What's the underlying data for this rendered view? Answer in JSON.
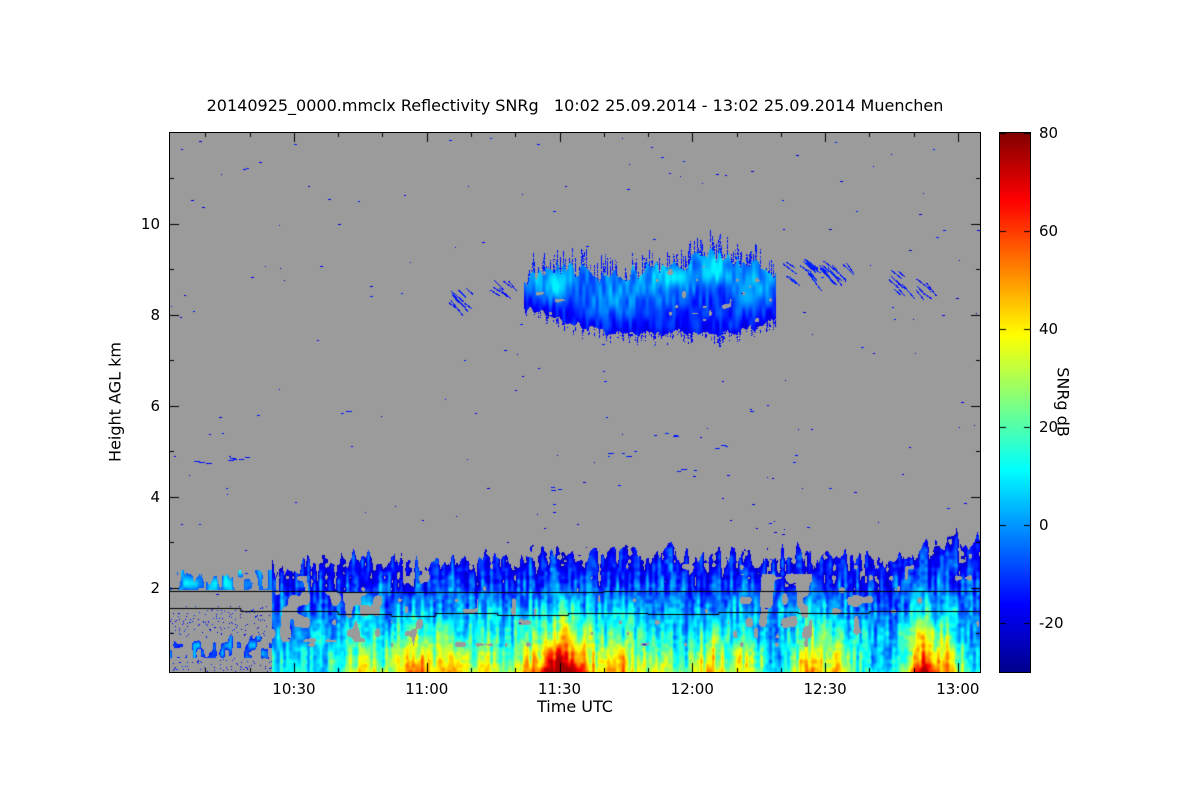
{
  "colors": {
    "page_background": "#ffffff",
    "text": "#000000",
    "axis": "#000000",
    "plot_background_gray": "#9b9b9b"
  },
  "chart_data": {
    "type": "heatmap",
    "title": "20140925_0000.mmclx Reflectivity SNRg   10:02 25.09.2014 - 13:02 25.09.2014 Muenchen",
    "xlabel": "Time UTC",
    "ylabel": "Height AGL km",
    "colorbar_label": "SNRg dB",
    "x_range_minutes": [
      602,
      785
    ],
    "y_range_km": [
      0.15,
      12.0
    ],
    "value_range_db": [
      -30,
      80
    ],
    "background_color": "#9b9b9b",
    "x_ticks": [
      {
        "minutes": 630,
        "label": "10:30"
      },
      {
        "minutes": 660,
        "label": "11:00"
      },
      {
        "minutes": 690,
        "label": "11:30"
      },
      {
        "minutes": 720,
        "label": "12:00"
      },
      {
        "minutes": 750,
        "label": "12:30"
      },
      {
        "minutes": 780,
        "label": "13:00"
      }
    ],
    "x_minor_ticks": [
      610,
      620,
      640,
      650,
      670,
      680,
      700,
      710,
      730,
      740,
      760,
      770
    ],
    "y_ticks": [
      {
        "km": 2,
        "label": "2"
      },
      {
        "km": 4,
        "label": "4"
      },
      {
        "km": 6,
        "label": "6"
      },
      {
        "km": 8,
        "label": "8"
      },
      {
        "km": 10,
        "label": "10"
      }
    ],
    "y_minor_ticks": [
      1,
      3,
      5,
      7,
      9,
      11
    ],
    "colorbar_ticks": [
      {
        "value": 80,
        "label": "80"
      },
      {
        "value": 60,
        "label": "60"
      },
      {
        "value": 40,
        "label": "40"
      },
      {
        "value": 20,
        "label": "20"
      },
      {
        "value": 0,
        "label": "0"
      },
      {
        "value": -20,
        "label": "-20"
      }
    ],
    "colormap": [
      [
        0.0,
        [
          0,
          0,
          140
        ]
      ],
      [
        0.125,
        [
          0,
          0,
          255
        ]
      ],
      [
        0.375,
        [
          0,
          255,
          255
        ]
      ],
      [
        0.625,
        [
          255,
          255,
          0
        ]
      ],
      [
        0.875,
        [
          255,
          0,
          0
        ]
      ],
      [
        1.0,
        [
          130,
          0,
          0
        ]
      ]
    ],
    "hole_p": 0.1,
    "hole_bands": [
      {
        "t0": 602,
        "t1": 650,
        "h0": 0.8,
        "h1": 1.9,
        "p": 0.42
      },
      {
        "t0": 728,
        "t1": 747,
        "h0": 0.9,
        "h1": 2.3,
        "p": 0.34
      },
      {
        "t0": 750,
        "t1": 766,
        "h0": 1.0,
        "h1": 2.0,
        "p": 0.25
      }
    ],
    "boundary_layer": {
      "t_start": 602,
      "t_end": 785,
      "base_km": 0.15,
      "top_profile": [
        [
          602,
          2.25
        ],
        [
          620,
          2.3
        ],
        [
          626,
          2.45
        ],
        [
          634,
          2.55
        ],
        [
          642,
          2.6
        ],
        [
          650,
          2.65
        ],
        [
          658,
          2.55
        ],
        [
          664,
          2.6
        ],
        [
          672,
          2.7
        ],
        [
          678,
          2.6
        ],
        [
          684,
          2.75
        ],
        [
          690,
          2.8
        ],
        [
          696,
          2.65
        ],
        [
          702,
          2.7
        ],
        [
          708,
          2.75
        ],
        [
          714,
          2.85
        ],
        [
          720,
          2.7
        ],
        [
          726,
          2.75
        ],
        [
          732,
          2.65
        ],
        [
          738,
          2.7
        ],
        [
          744,
          2.8
        ],
        [
          750,
          2.7
        ],
        [
          756,
          2.65
        ],
        [
          762,
          2.6
        ],
        [
          768,
          2.7
        ],
        [
          774,
          2.9
        ],
        [
          779,
          3.1
        ],
        [
          785,
          3.0
        ]
      ],
      "left_zone": {
        "t_end": 625,
        "band": [
          1.95,
          2.4
        ],
        "low_band": [
          0.45,
          0.95
        ],
        "dot_h_max": 1.6
      },
      "plumes": [
        {
          "t": 646,
          "width": 5,
          "strength": 30
        },
        {
          "t": 657,
          "width": 4,
          "strength": 50
        },
        {
          "t": 665,
          "width": 4,
          "strength": 35
        },
        {
          "t": 673,
          "width": 4,
          "strength": 30
        },
        {
          "t": 683,
          "width": 4,
          "strength": 35
        },
        {
          "t": 690,
          "width": 4,
          "strength": 68
        },
        {
          "t": 696,
          "width": 4,
          "strength": 40
        },
        {
          "t": 704,
          "width": 4,
          "strength": 38
        },
        {
          "t": 712,
          "width": 4,
          "strength": 30
        },
        {
          "t": 724,
          "width": 4,
          "strength": 35
        },
        {
          "t": 732,
          "width": 4,
          "strength": 30
        },
        {
          "t": 746,
          "width": 4,
          "strength": 35
        },
        {
          "t": 753,
          "width": 4,
          "strength": 30
        },
        {
          "t": 772,
          "width": 4,
          "strength": 62
        },
        {
          "t": 778,
          "width": 3,
          "strength": 40
        }
      ]
    },
    "cirrus": {
      "t_start": 682,
      "t_end": 739,
      "base_profile": [
        [
          682,
          8.2
        ],
        [
          688,
          8.0
        ],
        [
          694,
          7.8
        ],
        [
          700,
          7.65
        ],
        [
          706,
          7.55
        ],
        [
          712,
          7.6
        ],
        [
          718,
          7.65
        ],
        [
          724,
          7.55
        ],
        [
          730,
          7.65
        ],
        [
          735,
          7.75
        ],
        [
          739,
          8.0
        ]
      ],
      "top_profile": [
        [
          682,
          8.7
        ],
        [
          686,
          8.95
        ],
        [
          690,
          9.05
        ],
        [
          696,
          8.9
        ],
        [
          702,
          8.85
        ],
        [
          708,
          8.95
        ],
        [
          714,
          9.05
        ],
        [
          719,
          9.15
        ],
        [
          724,
          9.35
        ],
        [
          728,
          9.25
        ],
        [
          732,
          9.15
        ],
        [
          736,
          9.0
        ],
        [
          739,
          8.85
        ]
      ],
      "value_base": -16,
      "value_top": -2,
      "noise_amp": 7,
      "cores": [
        {
          "t": 689,
          "h": 8.6,
          "rt": 4,
          "rh": 0.3,
          "dv": 15
        },
        {
          "t": 702,
          "h": 8.3,
          "rt": 5,
          "rh": 0.3,
          "dv": 8
        },
        {
          "t": 715,
          "h": 8.8,
          "rt": 5,
          "rh": 0.35,
          "dv": 12
        },
        {
          "t": 725,
          "h": 9.0,
          "rt": 3,
          "rh": 0.3,
          "dv": 15
        },
        {
          "t": 733,
          "h": 8.5,
          "rt": 4,
          "rh": 0.4,
          "dv": 12
        }
      ]
    },
    "patches": [
      {
        "t0": 663,
        "t1": 671,
        "h0": 8.25,
        "h1": 8.6,
        "v": -14,
        "n": 10
      },
      {
        "t0": 674,
        "t1": 680,
        "h0": 8.45,
        "h1": 8.8,
        "v": -15,
        "n": 7
      },
      {
        "t0": 740,
        "t1": 747,
        "h0": 8.85,
        "h1": 9.25,
        "v": -13,
        "n": 14
      },
      {
        "t0": 748,
        "t1": 755,
        "h0": 8.95,
        "h1": 9.2,
        "v": -14,
        "n": 10
      },
      {
        "t0": 763,
        "t1": 768,
        "h0": 8.5,
        "h1": 9.0,
        "v": -14,
        "n": 8
      },
      {
        "t0": 770,
        "t1": 773,
        "h0": 8.45,
        "h1": 8.8,
        "v": -15,
        "n": 5
      },
      {
        "t0": 745,
        "t1": 752,
        "h0": 8.9,
        "h1": 9.05,
        "v": -12,
        "n": 6
      }
    ],
    "speckles": {
      "count": 230,
      "seed": 12345,
      "region": [
        602,
        785,
        0.3,
        11.9
      ],
      "values": [
        -22,
        -12
      ],
      "dash_clusters": [
        {
          "t0": 610,
          "t1": 619,
          "h": 4.85,
          "n": 7
        },
        {
          "t0": 607,
          "t1": 612,
          "h": 4.8,
          "n": 3
        },
        {
          "t0": 640,
          "t1": 645,
          "h": 5.9,
          "n": 2
        },
        {
          "t0": 700,
          "t1": 707,
          "h": 4.95,
          "n": 5
        },
        {
          "t0": 708,
          "t1": 716,
          "h": 5.35,
          "n": 4
        },
        {
          "t0": 716,
          "t1": 722,
          "h": 4.6,
          "n": 3
        },
        {
          "t0": 724,
          "t1": 729,
          "h": 5.1,
          "n": 3
        },
        {
          "t0": 688,
          "t1": 694,
          "h": 4.2,
          "n": 3
        },
        {
          "t0": 730,
          "t1": 736,
          "h": 5.9,
          "n": 2
        }
      ]
    },
    "level_lines": [
      {
        "points": [
          [
            602,
            1.93
          ],
          [
            640,
            1.93
          ],
          [
            640,
            1.9
          ],
          [
            700,
            1.9
          ],
          [
            700,
            1.92
          ],
          [
            785,
            1.92
          ]
        ]
      },
      {
        "points": [
          [
            602,
            1.55
          ],
          [
            618,
            1.55
          ],
          [
            618,
            1.5
          ],
          [
            640,
            1.5
          ],
          [
            640,
            1.42
          ],
          [
            652,
            1.42
          ],
          [
            652,
            1.38
          ],
          [
            662,
            1.38
          ],
          [
            662,
            1.45
          ],
          [
            676,
            1.45
          ],
          [
            676,
            1.4
          ],
          [
            692,
            1.4
          ],
          [
            692,
            1.45
          ],
          [
            710,
            1.45
          ],
          [
            710,
            1.42
          ],
          [
            726,
            1.42
          ],
          [
            726,
            1.47
          ],
          [
            744,
            1.47
          ],
          [
            744,
            1.44
          ],
          [
            760,
            1.44
          ],
          [
            760,
            1.5
          ],
          [
            785,
            1.5
          ]
        ]
      }
    ]
  }
}
